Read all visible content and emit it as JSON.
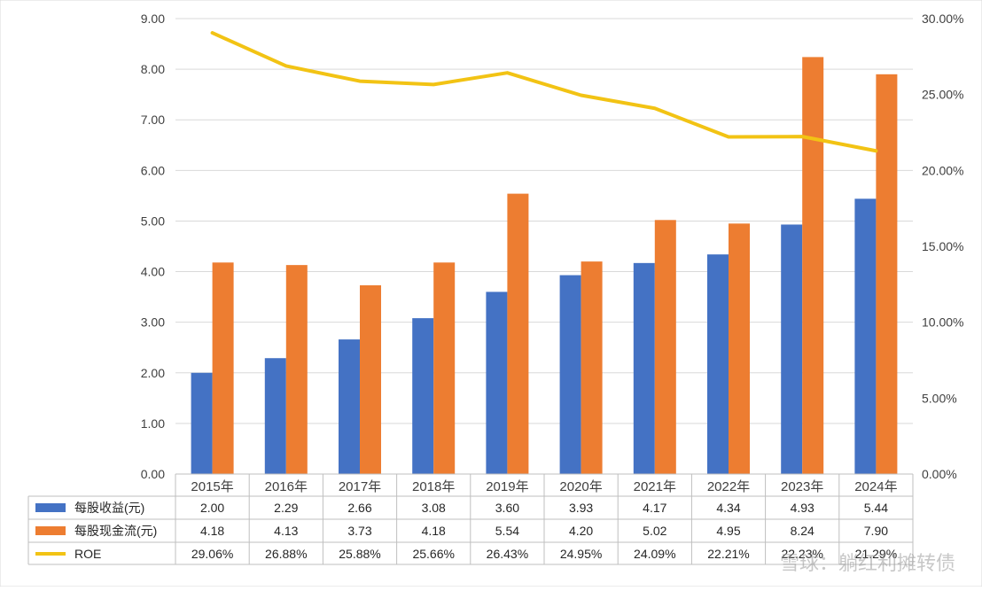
{
  "chart_data": {
    "type": "bar",
    "categories": [
      "2015年",
      "2016年",
      "2017年",
      "2018年",
      "2019年",
      "2020年",
      "2021年",
      "2022年",
      "2023年",
      "2024年"
    ],
    "series": [
      {
        "name": "每股收益(元)",
        "type": "bar",
        "axis": "left",
        "color": "#4472C4",
        "values": [
          2.0,
          2.29,
          2.66,
          3.08,
          3.6,
          3.93,
          4.17,
          4.34,
          4.93,
          5.44
        ],
        "labels": [
          "2.00",
          "2.29",
          "2.66",
          "3.08",
          "3.60",
          "3.93",
          "4.17",
          "4.34",
          "4.93",
          "5.44"
        ]
      },
      {
        "name": "每股现金流(元)",
        "type": "bar",
        "axis": "left",
        "color": "#ED7D31",
        "values": [
          4.18,
          4.13,
          3.73,
          4.18,
          5.54,
          4.2,
          5.02,
          4.95,
          8.24,
          7.9
        ],
        "labels": [
          "4.18",
          "4.13",
          "3.73",
          "4.18",
          "5.54",
          "4.20",
          "5.02",
          "4.95",
          "8.24",
          "7.90"
        ]
      },
      {
        "name": "ROE",
        "type": "line",
        "axis": "right",
        "color": "#F2C314",
        "values": [
          29.06,
          26.88,
          25.88,
          25.66,
          26.43,
          24.95,
          24.09,
          22.21,
          22.23,
          21.29
        ],
        "labels": [
          "29.06%",
          "26.88%",
          "25.88%",
          "25.66%",
          "26.43%",
          "24.95%",
          "24.09%",
          "22.21%",
          "22.23%",
          "21.29%"
        ]
      }
    ],
    "y_left": {
      "ylim": [
        0,
        9
      ],
      "ticks": [
        "0.00",
        "1.00",
        "2.00",
        "3.00",
        "4.00",
        "5.00",
        "6.00",
        "7.00",
        "8.00",
        "9.00"
      ]
    },
    "y_right": {
      "ylim": [
        0,
        30
      ],
      "unit": "%",
      "ticks": [
        "0.00%",
        "5.00%",
        "10.00%",
        "15.00%",
        "20.00%",
        "25.00%",
        "30.00%"
      ]
    },
    "grid": true,
    "legend": "data-table"
  },
  "watermark": "雪球：躺红利摊转债"
}
